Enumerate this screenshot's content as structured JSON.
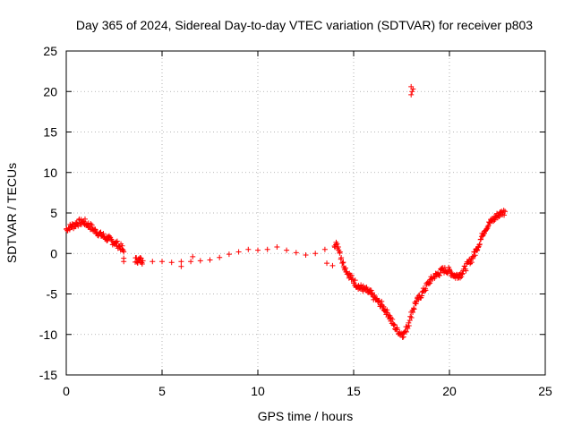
{
  "chart_data": {
    "type": "scatter",
    "title": "Day 365 of 2024, Sidereal Day-to-day VTEC variation (SDTVAR) for receiver p803",
    "xlabel": "GPS time / hours",
    "ylabel": "SDTVAR / TECUs",
    "xlim": [
      0,
      25
    ],
    "ylim": [
      -15,
      25
    ],
    "xticks": [
      0,
      5,
      10,
      15,
      20,
      25
    ],
    "yticks": [
      -15,
      -10,
      -5,
      0,
      5,
      10,
      15,
      20,
      25
    ],
    "grid": true,
    "marker": "+",
    "color": "#ff0000",
    "series": [
      {
        "name": "SDTVAR",
        "trace": [
          [
            0.0,
            3.0
          ],
          [
            0.3,
            3.4
          ],
          [
            0.6,
            3.8
          ],
          [
            0.9,
            3.9
          ],
          [
            1.2,
            3.4
          ],
          [
            1.5,
            2.8
          ],
          [
            1.8,
            2.3
          ],
          [
            2.1,
            1.9
          ],
          [
            2.4,
            1.5
          ],
          [
            2.7,
            1.0
          ],
          [
            2.9,
            0.6
          ],
          [
            3.0,
            0.2
          ],
          [
            3.6,
            -0.8
          ],
          [
            4.0,
            -0.9
          ],
          [
            4.5,
            -1.0
          ],
          [
            5.0,
            -1.0
          ],
          [
            5.5,
            -1.1
          ],
          [
            6.0,
            -1.0
          ],
          [
            6.5,
            -1.0
          ],
          [
            7.0,
            -0.9
          ],
          [
            7.5,
            -0.8
          ],
          [
            8.0,
            -0.5
          ],
          [
            8.5,
            -0.1
          ],
          [
            9.0,
            0.2
          ],
          [
            9.5,
            0.5
          ],
          [
            10.0,
            0.4
          ],
          [
            10.5,
            0.5
          ],
          [
            11.0,
            0.8
          ],
          [
            11.5,
            0.4
          ],
          [
            12.0,
            0.1
          ],
          [
            12.5,
            -0.2
          ],
          [
            13.0,
            0.0
          ],
          [
            13.5,
            0.5
          ],
          [
            14.0,
            1.2
          ],
          [
            14.2,
            0.8
          ],
          [
            14.4,
            -1.0
          ],
          [
            14.7,
            -2.5
          ],
          [
            15.0,
            -3.5
          ],
          [
            15.3,
            -4.2
          ],
          [
            15.6,
            -4.5
          ],
          [
            15.9,
            -5.0
          ],
          [
            16.2,
            -5.8
          ],
          [
            16.5,
            -6.5
          ],
          [
            16.8,
            -7.5
          ],
          [
            17.0,
            -8.5
          ],
          [
            17.2,
            -9.3
          ],
          [
            17.4,
            -9.8
          ],
          [
            17.6,
            -10.0
          ],
          [
            17.8,
            -9.0
          ],
          [
            18.0,
            -7.5
          ],
          [
            18.2,
            -6.2
          ],
          [
            18.5,
            -5.2
          ],
          [
            18.8,
            -4.0
          ],
          [
            19.1,
            -3.0
          ],
          [
            19.4,
            -2.5
          ],
          [
            19.7,
            -2.0
          ],
          [
            20.0,
            -2.2
          ],
          [
            20.3,
            -2.8
          ],
          [
            20.6,
            -2.5
          ],
          [
            20.9,
            -1.5
          ],
          [
            21.2,
            -0.5
          ],
          [
            21.5,
            1.0
          ],
          [
            21.8,
            2.8
          ],
          [
            22.1,
            3.8
          ],
          [
            22.4,
            4.5
          ],
          [
            22.7,
            5.0
          ],
          [
            22.9,
            5.2
          ]
        ],
        "outliers": [
          [
            18.0,
            19.6
          ],
          [
            18.05,
            20.0
          ],
          [
            18.1,
            20.3
          ],
          [
            18.0,
            20.6
          ]
        ],
        "extra_dips": [
          [
            3.0,
            -0.6
          ],
          [
            3.0,
            -1.0
          ],
          [
            6.0,
            -1.6
          ],
          [
            6.6,
            -0.4
          ],
          [
            13.9,
            -1.5
          ],
          [
            13.6,
            -1.2
          ]
        ]
      }
    ]
  }
}
